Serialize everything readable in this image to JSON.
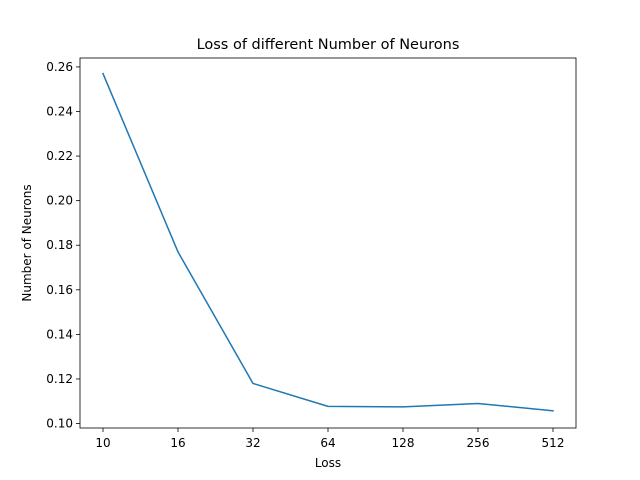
{
  "chart_data": {
    "type": "line",
    "title": "Loss of different Number of Neurons",
    "xlabel": "Loss",
    "ylabel": "Number of Neurons",
    "categories": [
      "10",
      "16",
      "32",
      "64",
      "128",
      "256",
      "512"
    ],
    "series": [
      {
        "values": [
          0.257,
          0.177,
          0.118,
          0.1077,
          0.1075,
          0.109,
          0.1057
        ],
        "color": "#1f77b4"
      }
    ],
    "yticks": [
      "0.10",
      "0.12",
      "0.14",
      "0.16",
      "0.18",
      "0.20",
      "0.22",
      "0.24",
      "0.26"
    ],
    "ylim": [
      0.098,
      0.264
    ],
    "grid": false
  }
}
